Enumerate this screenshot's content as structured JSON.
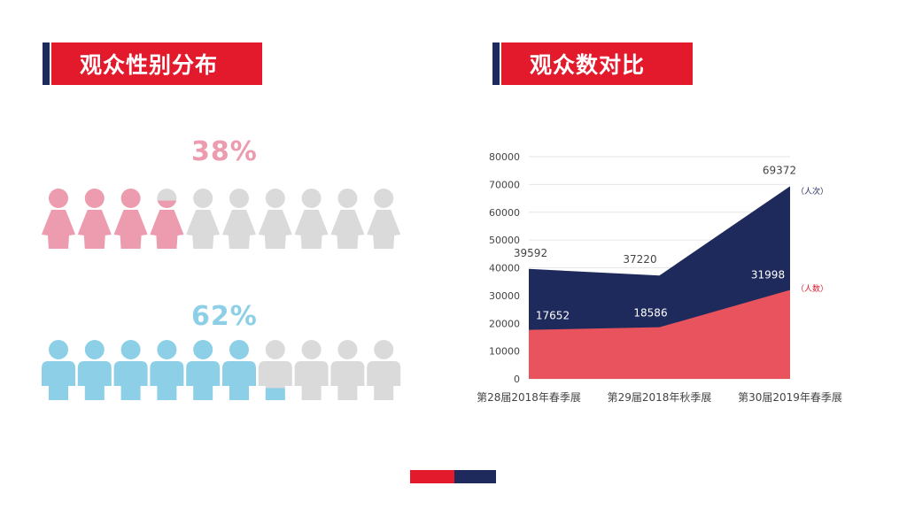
{
  "colors": {
    "brand_red": "#e21a2c",
    "brand_navy": "#1f2a5c",
    "female": "#ec9cae",
    "male": "#8dcfe6",
    "inactive": "#dadada",
    "series_visits": "#1f2a5c",
    "series_people": "#e8535e"
  },
  "left_panel": {
    "title": "观众性别分布",
    "female": {
      "percent_label": "38%",
      "value": 0.38,
      "icon_count": 10
    },
    "male": {
      "percent_label": "62%",
      "value": 0.62,
      "icon_count": 10
    }
  },
  "right_panel": {
    "title": "观众数对比"
  },
  "chart_data": {
    "type": "area",
    "categories": [
      "第28届2018年春季展",
      "第29届2018年秋季展",
      "第30届2019年春季展"
    ],
    "series": [
      {
        "name": "（人次）",
        "values": [
          39592,
          37220,
          69372
        ],
        "color": "#1f2a5c"
      },
      {
        "name": "（人数）",
        "values": [
          17652,
          18586,
          31998
        ],
        "color": "#e8535e"
      }
    ],
    "ylim": [
      0,
      80000
    ],
    "yticks": [
      0,
      10000,
      20000,
      30000,
      40000,
      50000,
      60000,
      70000,
      80000
    ],
    "grid": true,
    "stacked": false
  }
}
